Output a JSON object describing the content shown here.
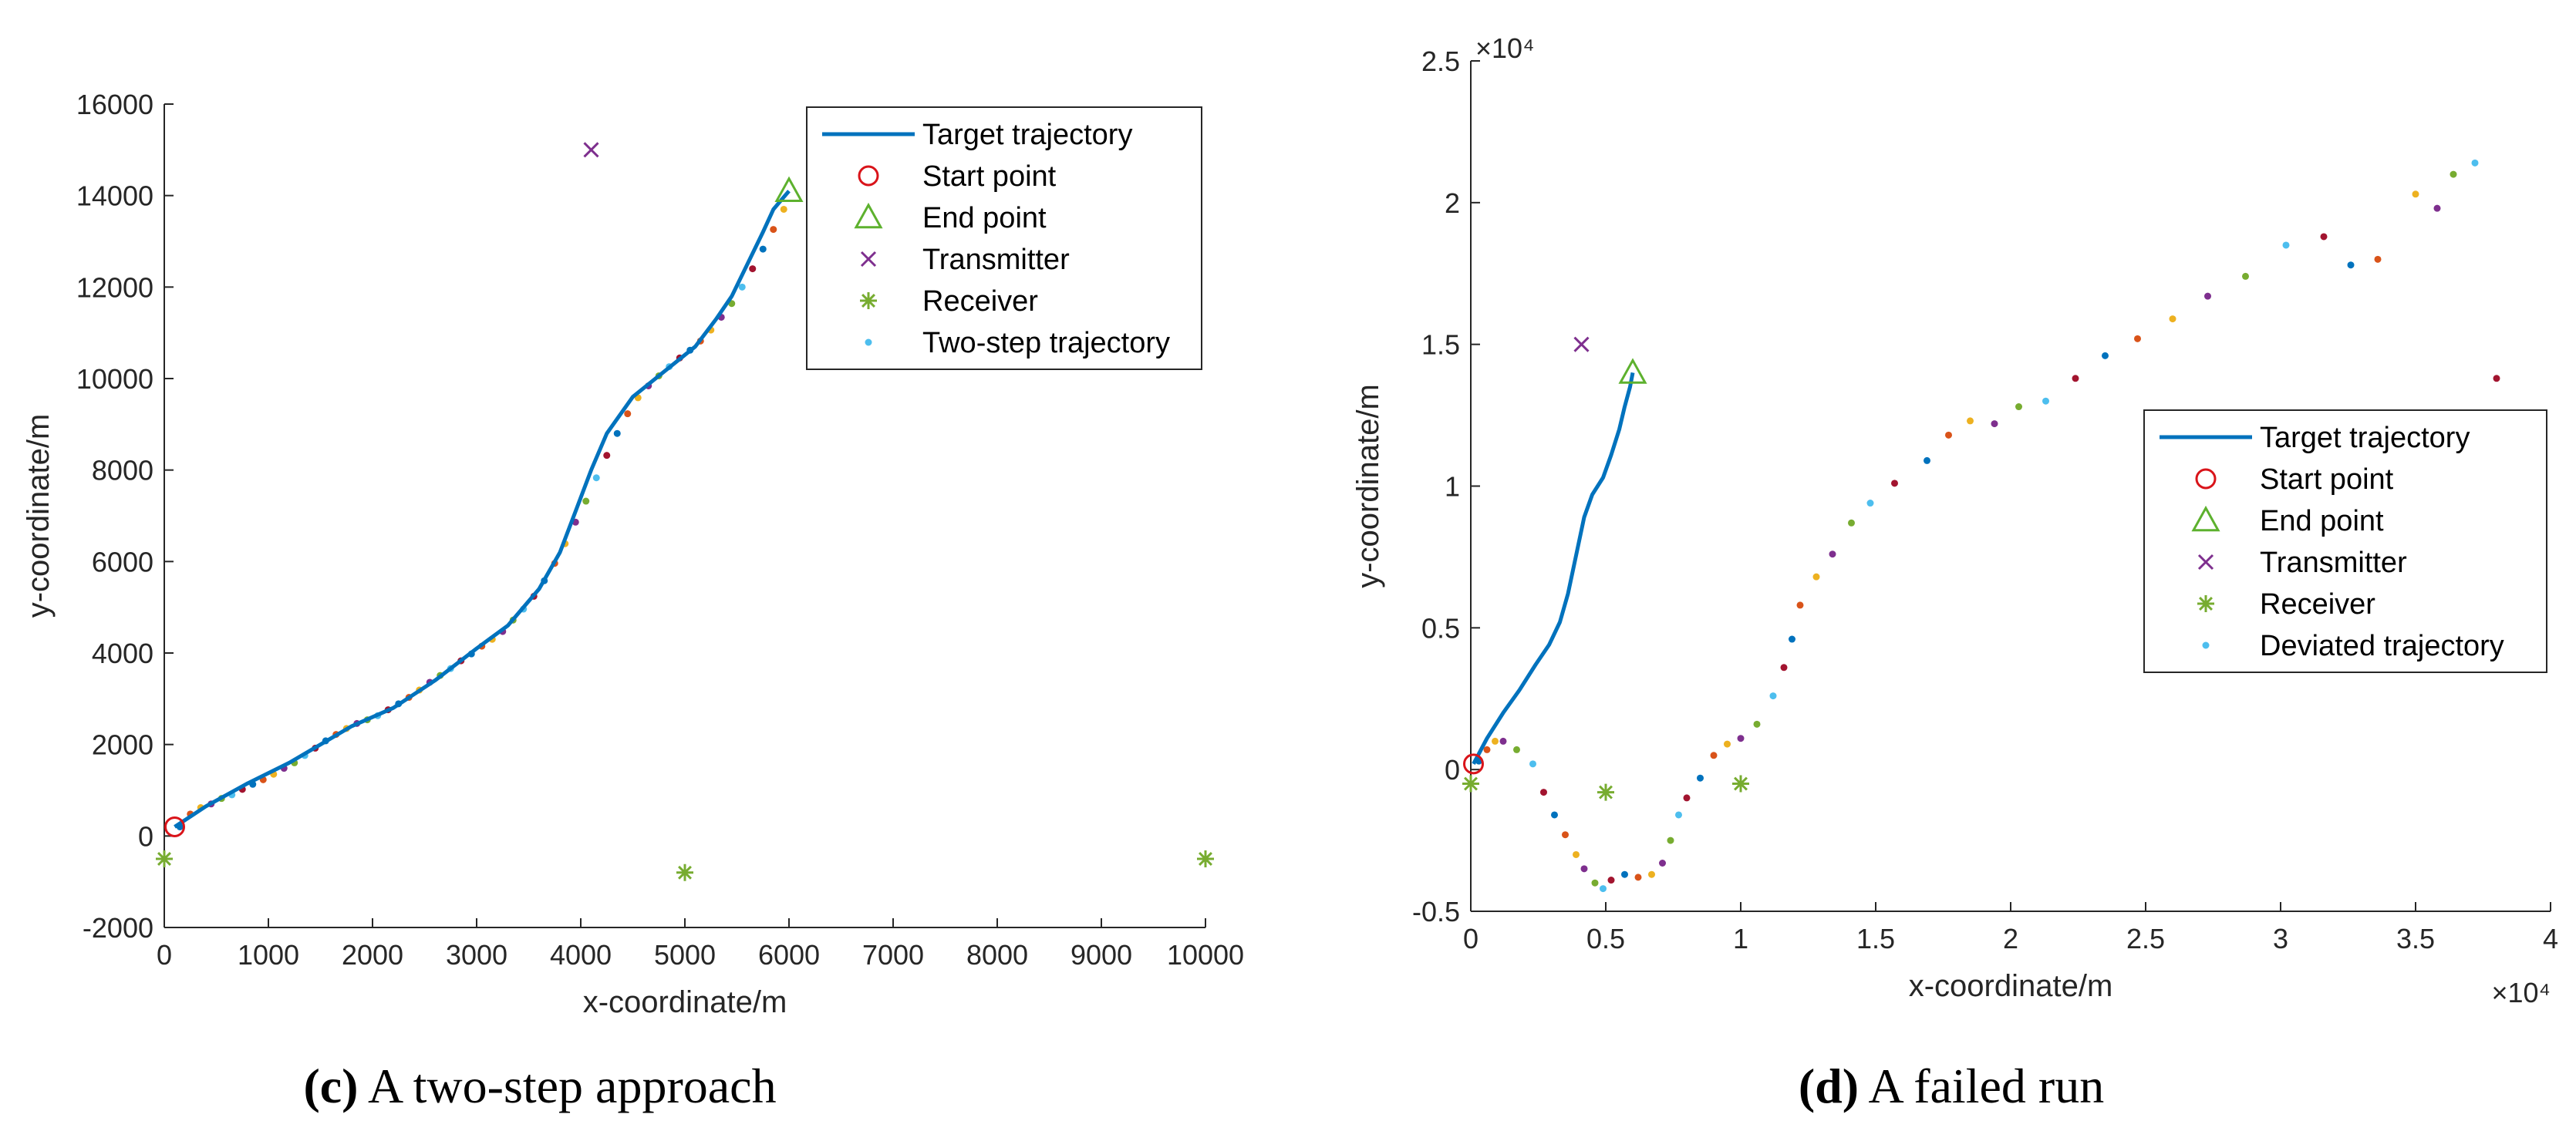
{
  "colors": {
    "trajectory": "#0072BD",
    "start": "#D9141A",
    "end": "#5DB12E",
    "transmitter": "#7E2F8E",
    "receiver": "#77AC30",
    "axis": "#262626",
    "dot_cycle": [
      "#0072BD",
      "#D95319",
      "#EDB120",
      "#7E2F8E",
      "#77AC30",
      "#4DBEEE",
      "#A2142F"
    ]
  },
  "chart_data": [
    {
      "type": "scatter",
      "panel_label": "(c)",
      "caption": "A two-step approach",
      "xlabel": "x-coordinate/m",
      "ylabel": "y-coordinate/m",
      "xlim": [
        0,
        10000
      ],
      "ylim": [
        -2000,
        16000
      ],
      "xticks": [
        0,
        1000,
        2000,
        3000,
        4000,
        5000,
        6000,
        7000,
        8000,
        9000,
        10000
      ],
      "yticks": [
        -2000,
        0,
        2000,
        4000,
        6000,
        8000,
        10000,
        12000,
        14000,
        16000
      ],
      "x_multiplier": "",
      "y_multiplier": "",
      "legend_position": "top-right",
      "legend": [
        "Target trajectory",
        "Start point",
        "End point",
        "Transmitter",
        "Receiver",
        "Two-step trajectory"
      ],
      "target_trajectory": [
        [
          100,
          200
        ],
        [
          400,
          650
        ],
        [
          800,
          1150
        ],
        [
          1200,
          1600
        ],
        [
          1500,
          2000
        ],
        [
          1800,
          2400
        ],
        [
          2200,
          2800
        ],
        [
          2600,
          3400
        ],
        [
          3000,
          4100
        ],
        [
          3300,
          4600
        ],
        [
          3600,
          5400
        ],
        [
          3800,
          6200
        ],
        [
          3950,
          7100
        ],
        [
          4100,
          8000
        ],
        [
          4250,
          8800
        ],
        [
          4500,
          9600
        ],
        [
          4800,
          10150
        ],
        [
          5100,
          10700
        ],
        [
          5300,
          11300
        ],
        [
          5450,
          11800
        ],
        [
          5600,
          12500
        ],
        [
          5750,
          13200
        ],
        [
          5850,
          13700
        ],
        [
          6000,
          14100
        ]
      ],
      "start_point": [
        100,
        200
      ],
      "end_point": [
        6000,
        14100
      ],
      "transmitter": [
        4100,
        15000
      ],
      "receivers": [
        [
          0,
          -500
        ],
        [
          5000,
          -800
        ],
        [
          10000,
          -500
        ]
      ],
      "deviated_points": [
        [
          150,
          200
        ],
        [
          250,
          480
        ],
        [
          350,
          620
        ],
        [
          450,
          700
        ],
        [
          550,
          820
        ],
        [
          650,
          900
        ],
        [
          750,
          1020
        ],
        [
          850,
          1130
        ],
        [
          950,
          1230
        ],
        [
          1050,
          1350
        ],
        [
          1150,
          1480
        ],
        [
          1250,
          1600
        ],
        [
          1350,
          1760
        ],
        [
          1450,
          1920
        ],
        [
          1550,
          2080
        ],
        [
          1650,
          2220
        ],
        [
          1750,
          2350
        ],
        [
          1850,
          2460
        ],
        [
          1950,
          2540
        ],
        [
          2050,
          2630
        ],
        [
          2150,
          2760
        ],
        [
          2250,
          2890
        ],
        [
          2350,
          3030
        ],
        [
          2450,
          3190
        ],
        [
          2550,
          3360
        ],
        [
          2650,
          3510
        ],
        [
          2750,
          3660
        ],
        [
          2850,
          3830
        ],
        [
          2950,
          3980
        ],
        [
          3050,
          4150
        ],
        [
          3150,
          4300
        ],
        [
          3250,
          4470
        ],
        [
          3350,
          4720
        ],
        [
          3450,
          4960
        ],
        [
          3550,
          5240
        ],
        [
          3650,
          5580
        ],
        [
          3750,
          5960
        ],
        [
          3850,
          6390
        ],
        [
          3950,
          6860
        ],
        [
          4050,
          7320
        ],
        [
          4150,
          7830
        ],
        [
          4250,
          8320
        ],
        [
          4350,
          8800
        ],
        [
          4450,
          9230
        ],
        [
          4550,
          9580
        ],
        [
          4650,
          9840
        ],
        [
          4750,
          10060
        ],
        [
          4850,
          10260
        ],
        [
          4950,
          10450
        ],
        [
          5050,
          10620
        ],
        [
          5150,
          10820
        ],
        [
          5250,
          11060
        ],
        [
          5350,
          11340
        ],
        [
          5450,
          11640
        ],
        [
          5550,
          12000
        ],
        [
          5650,
          12400
        ],
        [
          5750,
          12830
        ],
        [
          5850,
          13260
        ],
        [
          5950,
          13700
        ]
      ]
    },
    {
      "type": "scatter",
      "panel_label": "(d)",
      "caption": "A failed run",
      "xlabel": "x-coordinate/m",
      "ylabel": "y-coordinate/m",
      "xlim": [
        0,
        40000
      ],
      "ylim": [
        -5000,
        25000
      ],
      "xtick_values": [
        0,
        5000,
        10000,
        15000,
        20000,
        25000,
        30000,
        35000,
        40000
      ],
      "xticks": [
        "0",
        "0.5",
        "1",
        "1.5",
        "2",
        "2.5",
        "3",
        "3.5",
        "4"
      ],
      "ytick_values": [
        -5000,
        0,
        5000,
        10000,
        15000,
        20000,
        25000
      ],
      "yticks": [
        "-0.5",
        "0",
        "0.5",
        "1",
        "1.5",
        "2",
        "2.5"
      ],
      "x_multiplier": "×10⁴",
      "y_multiplier": "×10⁴",
      "legend_position": "center-right",
      "legend": [
        "Target trajectory",
        "Start point",
        "End point",
        "Transmitter",
        "Receiver",
        "Deviated trajectory"
      ],
      "target_trajectory": [
        [
          100,
          200
        ],
        [
          600,
          1100
        ],
        [
          1200,
          2000
        ],
        [
          1800,
          2800
        ],
        [
          2400,
          3700
        ],
        [
          2900,
          4400
        ],
        [
          3300,
          5200
        ],
        [
          3600,
          6200
        ],
        [
          3800,
          7100
        ],
        [
          4000,
          8000
        ],
        [
          4200,
          8900
        ],
        [
          4500,
          9700
        ],
        [
          4900,
          10300
        ],
        [
          5200,
          11100
        ],
        [
          5500,
          12000
        ],
        [
          5700,
          12800
        ],
        [
          5900,
          13500
        ],
        [
          6000,
          14000
        ]
      ],
      "start_point": [
        100,
        200
      ],
      "end_point": [
        6000,
        14000
      ],
      "transmitter": [
        4100,
        15000
      ],
      "receivers": [
        [
          0,
          -500
        ],
        [
          5000,
          -800
        ],
        [
          10000,
          -500
        ]
      ],
      "deviated_points": [
        [
          300,
          300
        ],
        [
          600,
          700
        ],
        [
          900,
          1000
        ],
        [
          1200,
          1000
        ],
        [
          1700,
          700
        ],
        [
          2300,
          200
        ],
        [
          2700,
          -800
        ],
        [
          3100,
          -1600
        ],
        [
          3500,
          -2300
        ],
        [
          3900,
          -3000
        ],
        [
          4200,
          -3500
        ],
        [
          4600,
          -4000
        ],
        [
          4900,
          -4200
        ],
        [
          5200,
          -3900
        ],
        [
          5700,
          -3700
        ],
        [
          6200,
          -3800
        ],
        [
          6700,
          -3700
        ],
        [
          7100,
          -3300
        ],
        [
          7400,
          -2500
        ],
        [
          7700,
          -1600
        ],
        [
          8000,
          -1000
        ],
        [
          8500,
          -300
        ],
        [
          9000,
          500
        ],
        [
          9500,
          900
        ],
        [
          10000,
          1100
        ],
        [
          10600,
          1600
        ],
        [
          11200,
          2600
        ],
        [
          11600,
          3600
        ],
        [
          11900,
          4600
        ],
        [
          12200,
          5800
        ],
        [
          12800,
          6800
        ],
        [
          13400,
          7600
        ],
        [
          14100,
          8700
        ],
        [
          14800,
          9400
        ],
        [
          15700,
          10100
        ],
        [
          16900,
          10900
        ],
        [
          17700,
          11800
        ],
        [
          18500,
          12300
        ],
        [
          19400,
          12200
        ],
        [
          20300,
          12800
        ],
        [
          21300,
          13000
        ],
        [
          22400,
          13800
        ],
        [
          23500,
          14600
        ],
        [
          24700,
          15200
        ],
        [
          26000,
          15900
        ],
        [
          27300,
          16700
        ],
        [
          28700,
          17400
        ],
        [
          30200,
          18500
        ],
        [
          31600,
          18800
        ],
        [
          32600,
          17800
        ],
        [
          33600,
          18000
        ],
        [
          35000,
          20300
        ],
        [
          35800,
          19800
        ],
        [
          36400,
          21000
        ],
        [
          37200,
          21400
        ],
        [
          38000,
          13800
        ]
      ]
    }
  ]
}
